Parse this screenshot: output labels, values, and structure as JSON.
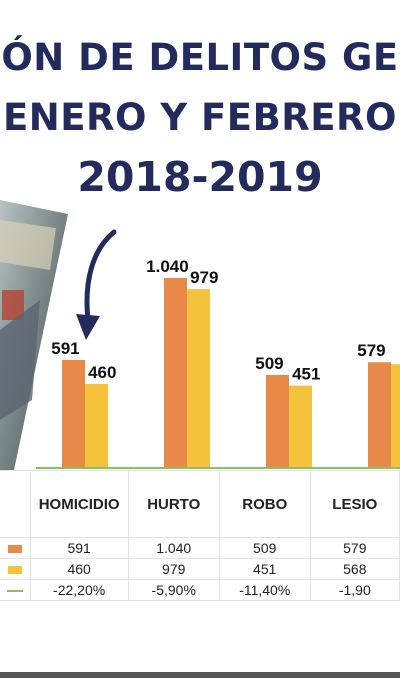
{
  "title": {
    "line1": "ÓN DE DELITOS GE",
    "line2": "ENERO Y FEBRERO",
    "line3": "2018-2019"
  },
  "colors": {
    "title": "#232a5c",
    "series_2018": "#e8894a",
    "series_2019": "#f5c23c",
    "variation_line": "#8cc063",
    "arrow": "#232a5c"
  },
  "chart_data": {
    "type": "bar",
    "categories": [
      "HOMICIDIO",
      "HURTO",
      "ROBO",
      "LESIO"
    ],
    "series": [
      {
        "values": [
          591,
          1040,
          509,
          579
        ],
        "labels": [
          "591",
          "1.040",
          "509",
          "579"
        ]
      },
      {
        "values": [
          460,
          979,
          451,
          568
        ],
        "labels": [
          "460",
          "979",
          "451",
          ""
        ]
      }
    ],
    "ylim": [
      0,
      1100
    ]
  },
  "table": {
    "headers": [
      "HOMICIDIO",
      "HURTO",
      "ROBO",
      "LESIO"
    ],
    "rows": [
      {
        "key": "series-2018",
        "cells": [
          "591",
          "1.040",
          "509",
          "579"
        ]
      },
      {
        "key": "series-2019",
        "cells": [
          "460",
          "979",
          "451",
          "568"
        ]
      },
      {
        "key": "variation",
        "cells": [
          "-22,20%",
          "-5,90%",
          "-11,40%",
          "-1,90"
        ]
      }
    ]
  }
}
